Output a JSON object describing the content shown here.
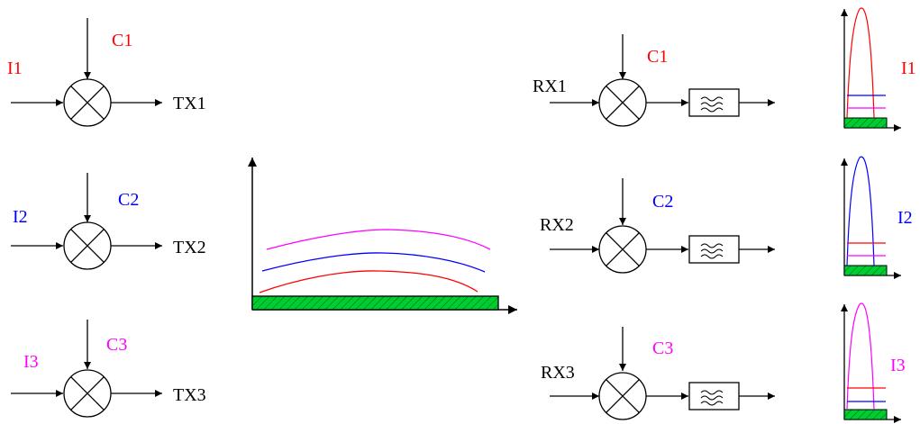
{
  "colors": {
    "red": "#ff0000",
    "blue": "#0000ff",
    "magenta": "#ff00ff",
    "black": "#000000",
    "hatch_fill": "#00cc33"
  },
  "transmitters": [
    {
      "input_label": "I1",
      "code_label": "C1",
      "output_label": "TX1",
      "color": "red"
    },
    {
      "input_label": "I2",
      "code_label": "C2",
      "output_label": "TX2",
      "color": "blue"
    },
    {
      "input_label": "I3",
      "code_label": "C3",
      "output_label": "TX3",
      "color": "magenta"
    }
  ],
  "receivers": [
    {
      "input_label": "RX1",
      "code_label": "C1",
      "result_label": "I1",
      "color": "red"
    },
    {
      "input_label": "RX2",
      "code_label": "C2",
      "result_label": "I2",
      "color": "blue"
    },
    {
      "input_label": "RX3",
      "code_label": "C3",
      "result_label": "I3",
      "color": "magenta"
    }
  ],
  "icons": {
    "mixer": "circle-x-mixer-icon",
    "filter": "lowpass-filter-icon",
    "arrow": "arrow-right-icon"
  }
}
